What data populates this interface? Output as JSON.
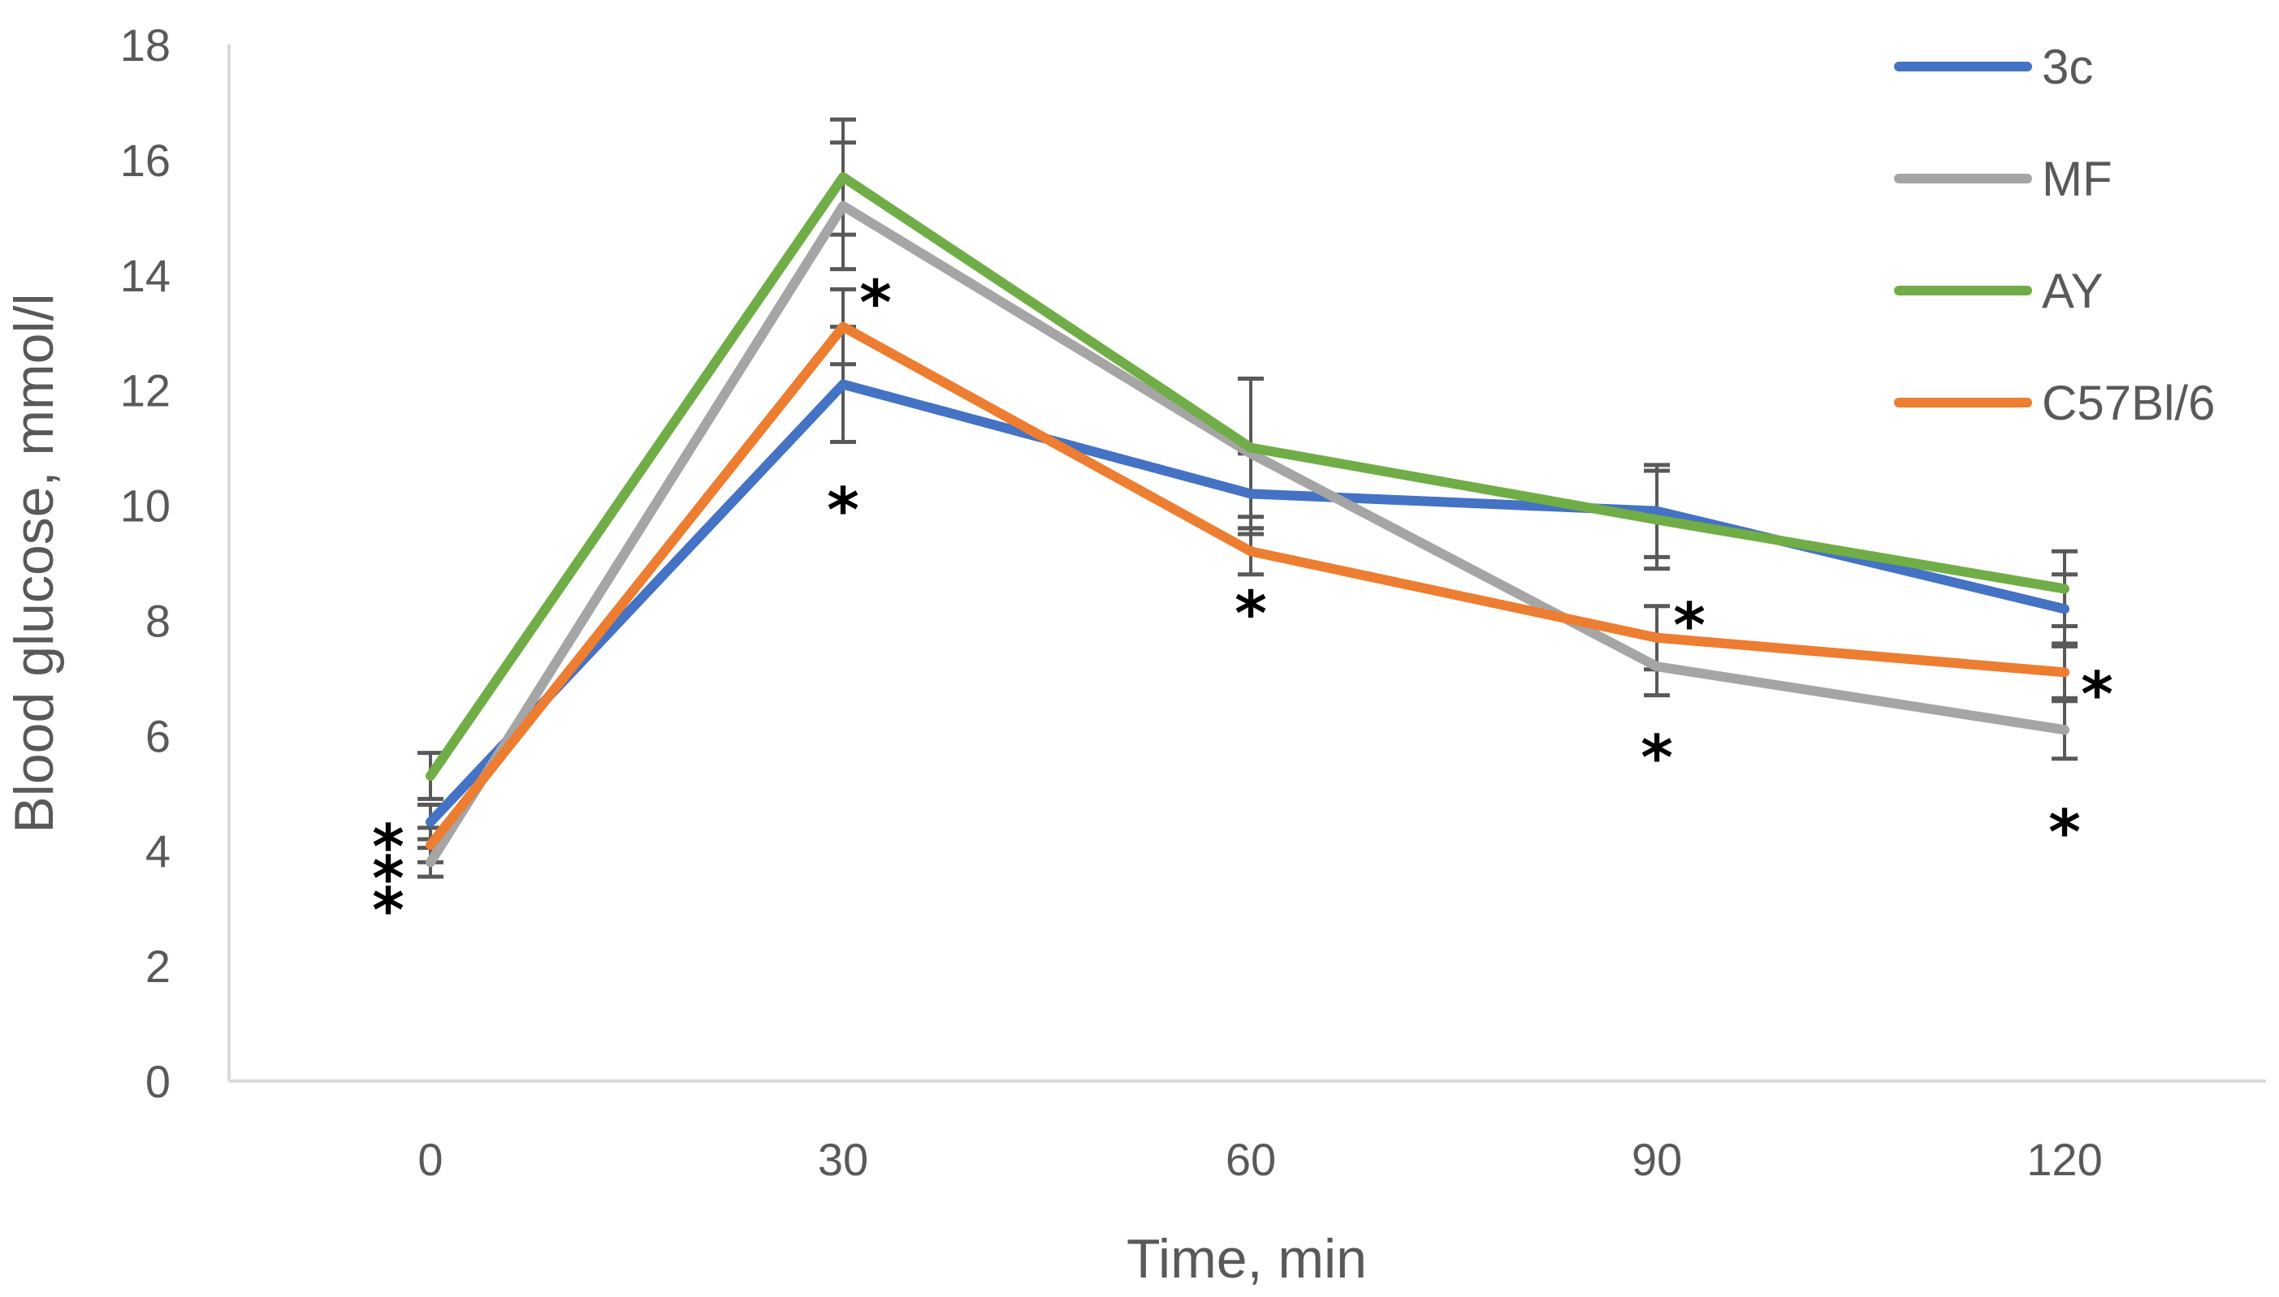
{
  "chart_data": {
    "type": "line",
    "title": "",
    "xlabel": "Time, min",
    "ylabel": "Blood glucose, mmol/l",
    "x": [
      0,
      30,
      60,
      90,
      120
    ],
    "x_tick_labels": [
      "0",
      "30",
      "60",
      "90",
      "120"
    ],
    "ylim": [
      0,
      18
    ],
    "y_ticks": [
      0,
      2,
      4,
      6,
      8,
      10,
      12,
      14,
      16,
      18
    ],
    "y_tick_labels": [
      "0",
      "2",
      "4",
      "6",
      "8",
      "10",
      "12",
      "14",
      "16",
      "18"
    ],
    "grid": false,
    "legend_position": "top-right",
    "series": [
      {
        "name": "3c",
        "color": "#4472C4",
        "values": [
          4.5,
          12.1,
          10.2,
          9.9,
          8.2
        ],
        "error": [
          0.3,
          1.0,
          0.7,
          0.8,
          0.6
        ]
      },
      {
        "name": "MF",
        "color": "#A5A5A5",
        "values": [
          3.8,
          15.2,
          10.9,
          7.2,
          6.1
        ],
        "error": [
          0.25,
          1.1,
          1.3,
          0.5,
          0.5
        ]
      },
      {
        "name": "AY",
        "color": "#70AD47",
        "values": [
          5.3,
          15.7,
          11.0,
          9.75,
          8.55
        ],
        "error": [
          0.4,
          1.0,
          1.2,
          0.85,
          0.65
        ]
      },
      {
        "name": "C57Bl/6",
        "color": "#ED7D31",
        "values": [
          4.1,
          13.1,
          9.2,
          7.7,
          7.1
        ],
        "error": [
          0.3,
          0.65,
          0.4,
          0.55,
          0.45
        ]
      }
    ],
    "significance_marks": [
      {
        "label": "*",
        "x": 0,
        "y": 4.35,
        "side": "left"
      },
      {
        "label": "*",
        "x": 0,
        "y": 3.8,
        "side": "left"
      },
      {
        "label": "*",
        "x": 0,
        "y": 3.25,
        "side": "left"
      },
      {
        "label": "*",
        "x": 30,
        "y": 13.8,
        "side": "right"
      },
      {
        "label": "*",
        "x": 30,
        "y": 10.2,
        "side": "center"
      },
      {
        "label": "*",
        "x": 60,
        "y": 8.4,
        "side": "center"
      },
      {
        "label": "*",
        "x": 90,
        "y": 8.2,
        "side": "right"
      },
      {
        "label": "*",
        "x": 90,
        "y": 5.9,
        "side": "center"
      },
      {
        "label": "*",
        "x": 120,
        "y": 7.0,
        "side": "right"
      },
      {
        "label": "*",
        "x": 120,
        "y": 4.6,
        "side": "center"
      }
    ]
  }
}
